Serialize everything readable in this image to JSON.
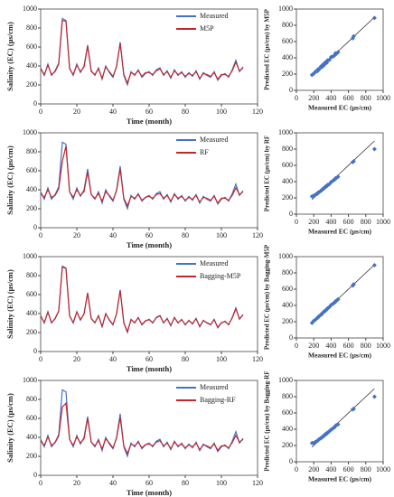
{
  "chart_data": [
    {
      "type": "line",
      "xlabel": "Time (month)",
      "ylabel": "Salinity (EC) (µs/cm)",
      "xlim": [
        0,
        120
      ],
      "xticks": [
        0,
        20,
        40,
        60,
        80,
        100,
        120
      ],
      "ylim": [
        0,
        1000
      ],
      "yticks": [
        0,
        200,
        400,
        600,
        800,
        1000
      ],
      "legend": "upper right",
      "x": [
        0,
        2,
        4,
        6,
        8,
        10,
        12,
        14,
        16,
        18,
        20,
        22,
        24,
        26,
        28,
        30,
        32,
        34,
        36,
        38,
        40,
        42,
        44,
        46,
        48,
        50,
        52,
        54,
        56,
        58,
        60,
        62,
        64,
        66,
        68,
        70,
        72,
        74,
        76,
        78,
        80,
        82,
        84,
        86,
        88,
        90,
        92,
        94,
        96,
        98,
        100,
        102,
        104,
        106,
        108,
        110,
        112
      ],
      "series": [
        {
          "name": "Measured",
          "color": "#4472c4",
          "values": [
            380,
            300,
            420,
            300,
            350,
            430,
            900,
            880,
            380,
            300,
            420,
            330,
            400,
            620,
            350,
            300,
            380,
            260,
            400,
            330,
            280,
            400,
            650,
            300,
            200,
            340,
            300,
            360,
            280,
            320,
            340,
            300,
            360,
            380,
            300,
            350,
            270,
            360,
            300,
            340,
            280,
            330,
            290,
            350,
            260,
            330,
            300,
            280,
            340,
            250,
            300,
            320,
            280,
            360,
            460,
            340,
            390
          ]
        },
        {
          "name": "M5P",
          "color": "#c0282d",
          "values": [
            370,
            310,
            410,
            310,
            340,
            420,
            880,
            870,
            370,
            310,
            410,
            340,
            390,
            610,
            340,
            310,
            370,
            270,
            390,
            340,
            290,
            390,
            640,
            310,
            220,
            330,
            310,
            350,
            290,
            330,
            330,
            310,
            350,
            370,
            310,
            340,
            280,
            350,
            310,
            330,
            290,
            320,
            300,
            340,
            270,
            320,
            310,
            290,
            330,
            260,
            310,
            310,
            290,
            350,
            440,
            350,
            380
          ]
        }
      ]
    },
    {
      "type": "scatter",
      "xlabel": "Measured EC (µs/cm)",
      "ylabel": "Predicted EC (µs/cm) by M5P",
      "xlim": [
        0,
        1000
      ],
      "xticks": [
        0,
        200,
        400,
        600,
        800,
        1000
      ],
      "ylim": [
        0,
        1000
      ],
      "yticks": [
        0,
        200,
        400,
        600,
        800,
        1000
      ],
      "color": "#4472c4",
      "x": [
        180,
        200,
        220,
        240,
        250,
        260,
        280,
        290,
        300,
        310,
        320,
        330,
        340,
        350,
        360,
        380,
        400,
        420,
        440,
        450,
        460,
        480,
        650,
        660,
        900
      ],
      "values": [
        190,
        205,
        230,
        235,
        260,
        255,
        290,
        285,
        310,
        300,
        330,
        325,
        350,
        340,
        370,
        375,
        410,
        415,
        430,
        455,
        450,
        470,
        640,
        665,
        890
      ]
    },
    {
      "type": "line",
      "xlabel": "Time (month)",
      "ylabel": "Salinity (EC) (µs/cm)",
      "xlim": [
        0,
        120
      ],
      "xticks": [
        0,
        20,
        40,
        60,
        80,
        100,
        120
      ],
      "ylim": [
        0,
        1000
      ],
      "yticks": [
        0,
        200,
        400,
        600,
        800,
        1000
      ],
      "legend": "upper right",
      "x": [
        0,
        2,
        4,
        6,
        8,
        10,
        12,
        14,
        16,
        18,
        20,
        22,
        24,
        26,
        28,
        30,
        32,
        34,
        36,
        38,
        40,
        42,
        44,
        46,
        48,
        50,
        52,
        54,
        56,
        58,
        60,
        62,
        64,
        66,
        68,
        70,
        72,
        74,
        76,
        78,
        80,
        82,
        84,
        86,
        88,
        90,
        92,
        94,
        96,
        98,
        100,
        102,
        104,
        106,
        108,
        110,
        112
      ],
      "series": [
        {
          "name": "Measured",
          "color": "#4472c4",
          "values": [
            380,
            300,
            420,
            300,
            350,
            430,
            900,
            880,
            380,
            300,
            420,
            330,
            400,
            620,
            350,
            300,
            380,
            260,
            400,
            330,
            280,
            400,
            650,
            300,
            200,
            340,
            300,
            360,
            280,
            320,
            340,
            300,
            360,
            380,
            300,
            350,
            270,
            360,
            300,
            340,
            280,
            330,
            290,
            350,
            260,
            330,
            300,
            280,
            340,
            250,
            300,
            320,
            280,
            360,
            460,
            340,
            390
          ]
        },
        {
          "name": "RF",
          "color": "#c0282d",
          "values": [
            360,
            320,
            400,
            320,
            340,
            410,
            700,
            860,
            380,
            320,
            400,
            340,
            380,
            590,
            350,
            310,
            360,
            280,
            380,
            340,
            290,
            390,
            620,
            310,
            230,
            330,
            310,
            350,
            290,
            320,
            330,
            310,
            350,
            360,
            310,
            340,
            280,
            350,
            310,
            330,
            290,
            320,
            300,
            340,
            270,
            320,
            310,
            290,
            330,
            260,
            310,
            310,
            290,
            340,
            420,
            350,
            380
          ]
        }
      ]
    },
    {
      "type": "scatter",
      "xlabel": "Measured EC (µs/cm)",
      "ylabel": "Predicted EC (µs/cm) by RF",
      "xlim": [
        0,
        1000
      ],
      "xticks": [
        0,
        200,
        400,
        600,
        800,
        1000
      ],
      "ylim": [
        0,
        1000
      ],
      "yticks": [
        0,
        200,
        400,
        600,
        800,
        1000
      ],
      "color": "#4472c4",
      "x": [
        180,
        200,
        220,
        240,
        250,
        260,
        280,
        290,
        300,
        310,
        320,
        330,
        340,
        350,
        360,
        380,
        400,
        420,
        440,
        450,
        460,
        480,
        650,
        660,
        900
      ],
      "values": [
        220,
        225,
        240,
        250,
        265,
        270,
        285,
        295,
        305,
        310,
        320,
        335,
        340,
        345,
        360,
        370,
        395,
        410,
        425,
        440,
        445,
        460,
        640,
        650,
        800
      ]
    },
    {
      "type": "line",
      "xlabel": "Time (month)",
      "ylabel": "Salinity (EC) (µs/cm)",
      "xlim": [
        0,
        120
      ],
      "xticks": [
        0,
        20,
        40,
        60,
        80,
        100,
        120
      ],
      "ylim": [
        0,
        1000
      ],
      "yticks": [
        0,
        200,
        400,
        600,
        800,
        1000
      ],
      "legend": "upper right",
      "x": [
        0,
        2,
        4,
        6,
        8,
        10,
        12,
        14,
        16,
        18,
        20,
        22,
        24,
        26,
        28,
        30,
        32,
        34,
        36,
        38,
        40,
        42,
        44,
        46,
        48,
        50,
        52,
        54,
        56,
        58,
        60,
        62,
        64,
        66,
        68,
        70,
        72,
        74,
        76,
        78,
        80,
        82,
        84,
        86,
        88,
        90,
        92,
        94,
        96,
        98,
        100,
        102,
        104,
        106,
        108,
        110,
        112
      ],
      "series": [
        {
          "name": "Measured",
          "color": "#4472c4",
          "values": [
            380,
            300,
            420,
            300,
            350,
            430,
            900,
            880,
            380,
            300,
            420,
            330,
            400,
            620,
            350,
            300,
            380,
            260,
            400,
            330,
            280,
            400,
            650,
            300,
            200,
            340,
            300,
            360,
            280,
            320,
            340,
            300,
            360,
            380,
            300,
            350,
            270,
            360,
            300,
            340,
            280,
            330,
            290,
            350,
            260,
            330,
            300,
            280,
            340,
            250,
            300,
            320,
            280,
            360,
            460,
            340,
            390
          ]
        },
        {
          "name": "Bagging-M5P",
          "color": "#c0282d",
          "values": [
            375,
            305,
            415,
            305,
            345,
            425,
            890,
            875,
            375,
            305,
            415,
            335,
            395,
            615,
            345,
            305,
            375,
            265,
            395,
            335,
            285,
            395,
            645,
            305,
            210,
            335,
            305,
            355,
            285,
            325,
            335,
            305,
            355,
            375,
            305,
            345,
            275,
            355,
            305,
            335,
            285,
            325,
            295,
            345,
            265,
            325,
            305,
            285,
            335,
            255,
            305,
            315,
            285,
            355,
            450,
            345,
            385
          ]
        }
      ]
    },
    {
      "type": "scatter",
      "xlabel": "Measured EC (µs/cm)",
      "ylabel": "Predicted EC (µs/cm) by Bagging-M5P",
      "xlim": [
        0,
        1000
      ],
      "xticks": [
        0,
        200,
        400,
        600,
        800,
        1000
      ],
      "ylim": [
        0,
        1000
      ],
      "yticks": [
        0,
        200,
        400,
        600,
        800,
        1000
      ],
      "color": "#4472c4",
      "x": [
        180,
        200,
        220,
        240,
        250,
        260,
        280,
        290,
        300,
        310,
        320,
        330,
        340,
        350,
        360,
        380,
        400,
        420,
        440,
        450,
        460,
        480,
        650,
        660,
        900
      ],
      "values": [
        185,
        210,
        225,
        245,
        255,
        265,
        285,
        290,
        305,
        315,
        325,
        330,
        345,
        350,
        365,
        380,
        405,
        420,
        435,
        450,
        455,
        475,
        645,
        660,
        895
      ]
    },
    {
      "type": "line",
      "xlabel": "Time (month)",
      "ylabel": "Salinity (EC) (µs/cm)",
      "xlim": [
        0,
        120
      ],
      "xticks": [
        0,
        20,
        40,
        60,
        80,
        100,
        120
      ],
      "ylim": [
        0,
        1000
      ],
      "yticks": [
        0,
        200,
        400,
        600,
        800,
        1000
      ],
      "legend": "upper right",
      "x": [
        0,
        2,
        4,
        6,
        8,
        10,
        12,
        14,
        16,
        18,
        20,
        22,
        24,
        26,
        28,
        30,
        32,
        34,
        36,
        38,
        40,
        42,
        44,
        46,
        48,
        50,
        52,
        54,
        56,
        58,
        60,
        62,
        64,
        66,
        68,
        70,
        72,
        74,
        76,
        78,
        80,
        82,
        84,
        86,
        88,
        90,
        92,
        94,
        96,
        98,
        100,
        102,
        104,
        106,
        108,
        110,
        112
      ],
      "series": [
        {
          "name": "Measured",
          "color": "#4472c4",
          "values": [
            380,
            300,
            420,
            300,
            350,
            430,
            900,
            880,
            380,
            300,
            420,
            330,
            400,
            620,
            350,
            300,
            380,
            260,
            400,
            330,
            280,
            400,
            650,
            300,
            200,
            340,
            300,
            360,
            280,
            320,
            340,
            300,
            360,
            380,
            300,
            350,
            270,
            360,
            300,
            340,
            280,
            330,
            290,
            350,
            260,
            330,
            300,
            280,
            340,
            250,
            300,
            320,
            280,
            360,
            460,
            340,
            390
          ]
        },
        {
          "name": "Bagging-RF",
          "color": "#c0282d",
          "values": [
            365,
            315,
            405,
            315,
            345,
            415,
            720,
            760,
            380,
            315,
            405,
            340,
            385,
            600,
            350,
            310,
            365,
            280,
            385,
            340,
            290,
            390,
            610,
            310,
            230,
            330,
            310,
            350,
            290,
            325,
            330,
            310,
            350,
            365,
            310,
            340,
            280,
            350,
            310,
            330,
            290,
            320,
            300,
            340,
            270,
            320,
            310,
            290,
            330,
            265,
            310,
            310,
            290,
            345,
            420,
            350,
            380
          ]
        }
      ]
    },
    {
      "type": "scatter",
      "xlabel": "Measured EC (µs/cm)",
      "ylabel": "Predicted EC (µs/cm) by Bagging-RF",
      "xlim": [
        0,
        1000
      ],
      "xticks": [
        0,
        200,
        400,
        600,
        800,
        1000
      ],
      "ylim": [
        0,
        1000
      ],
      "yticks": [
        0,
        200,
        400,
        600,
        800,
        1000
      ],
      "color": "#4472c4",
      "x": [
        180,
        200,
        220,
        240,
        250,
        260,
        280,
        290,
        300,
        310,
        320,
        330,
        340,
        350,
        360,
        380,
        400,
        420,
        440,
        450,
        460,
        480,
        650,
        660,
        900
      ],
      "values": [
        230,
        230,
        245,
        255,
        265,
        275,
        290,
        295,
        305,
        315,
        320,
        335,
        345,
        345,
        360,
        375,
        395,
        410,
        425,
        440,
        450,
        460,
        645,
        650,
        800
      ]
    }
  ]
}
